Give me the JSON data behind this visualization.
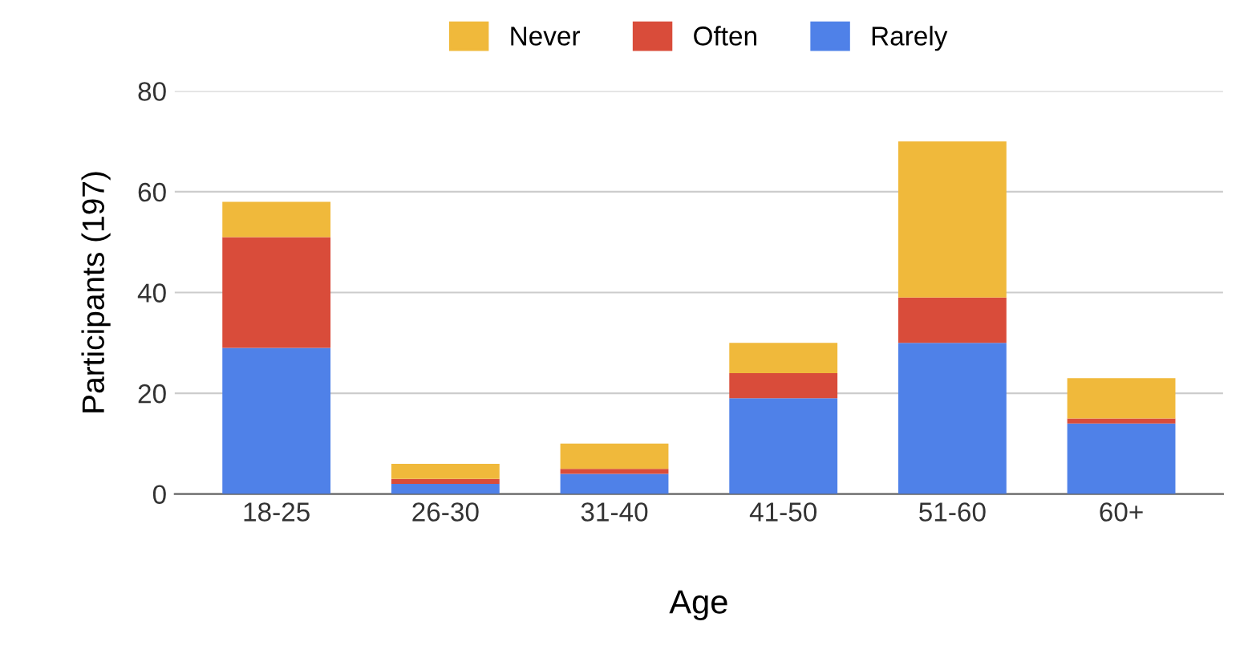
{
  "chart_data": {
    "type": "bar",
    "stacked": true,
    "xlabel": "Age",
    "ylabel": "Participants (197)",
    "categories": [
      "18-25",
      "26-30",
      "31-40",
      "41-50",
      "51-60",
      "60+"
    ],
    "series": [
      {
        "name": "Rarely",
        "color": "#4f81e8",
        "values": [
          29,
          2,
          4,
          19,
          30,
          14
        ]
      },
      {
        "name": "Often",
        "color": "#d94c3a",
        "values": [
          22,
          1,
          1,
          5,
          9,
          1
        ]
      },
      {
        "name": "Never",
        "color": "#f0b93b",
        "values": [
          7,
          3,
          5,
          6,
          31,
          8
        ]
      }
    ],
    "ylim": [
      0,
      80
    ],
    "yticks": [
      0,
      20,
      40,
      60,
      80
    ],
    "grid": "y",
    "legend": "top"
  }
}
